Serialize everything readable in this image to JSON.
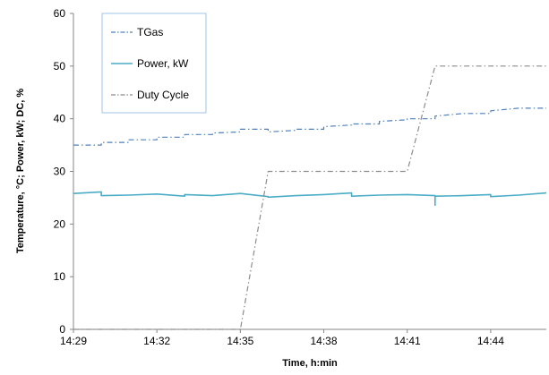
{
  "chart_data": {
    "type": "line",
    "title": "",
    "xlabel": "Time, h:min",
    "ylabel": "Temperature, °C; Power, kW; DC, %",
    "xlim": [
      "14:29",
      "14:46"
    ],
    "ylim": [
      0,
      60
    ],
    "yticks": [
      0,
      10,
      20,
      30,
      40,
      50,
      60
    ],
    "xtick_labels": [
      "14:29",
      "14:32",
      "14:35",
      "14:38",
      "14:41",
      "14:44"
    ],
    "grid": false,
    "legend_position": "top-left, inside plot",
    "series": [
      {
        "name": "TGas",
        "color": "#4f81bd",
        "style": "dash-dot",
        "x": [
          "14:29",
          "14:30",
          "14:30",
          "14:31",
          "14:31",
          "14:32",
          "14:32",
          "14:33",
          "14:33",
          "14:34",
          "14:34",
          "14:35",
          "14:35",
          "14:36",
          "14:36",
          "14:37",
          "14:37",
          "14:38",
          "14:38",
          "14:39",
          "14:39",
          "14:40",
          "14:40",
          "14:41",
          "14:41",
          "14:42",
          "14:42",
          "14:43",
          "14:43",
          "14:44",
          "14:44",
          "14:45",
          "14:45",
          "14:46"
        ],
        "values": [
          35,
          35,
          35.5,
          35.5,
          36,
          36,
          36.5,
          36.5,
          37,
          37,
          37.3,
          37.5,
          38,
          38,
          37.5,
          37.8,
          38,
          38,
          38.5,
          38.8,
          39,
          39,
          39.5,
          39.8,
          40,
          40,
          40.5,
          41,
          41,
          41,
          41.5,
          42,
          42,
          42
        ]
      },
      {
        "name": "Power, kW",
        "color": "#4bacc6",
        "style": "solid",
        "x": [
          "14:29",
          "14:30",
          "14:30",
          "14:31",
          "14:32",
          "14:33",
          "14:33",
          "14:34",
          "14:35",
          "14:36",
          "14:36",
          "14:37",
          "14:38",
          "14:39",
          "14:39",
          "14:40",
          "14:41",
          "14:42",
          "14:42",
          "14:42",
          "14:43",
          "14:44",
          "14:44",
          "14:45",
          "14:46"
        ],
        "values": [
          25.8,
          26.1,
          25.4,
          25.5,
          25.7,
          25.3,
          25.6,
          25.4,
          25.8,
          25.2,
          25.1,
          25.4,
          25.6,
          25.9,
          25.3,
          25.5,
          25.6,
          25.4,
          23.6,
          25.3,
          25.4,
          25.6,
          25.2,
          25.5,
          25.9
        ]
      },
      {
        "name": "Duty Cycle",
        "color": "#8c8c8c",
        "style": "dash-dot",
        "x": [
          "14:29",
          "14:35",
          "14:36",
          "14:41",
          "14:42",
          "14:46"
        ],
        "values": [
          0,
          0,
          30,
          30,
          50,
          50
        ]
      }
    ]
  }
}
